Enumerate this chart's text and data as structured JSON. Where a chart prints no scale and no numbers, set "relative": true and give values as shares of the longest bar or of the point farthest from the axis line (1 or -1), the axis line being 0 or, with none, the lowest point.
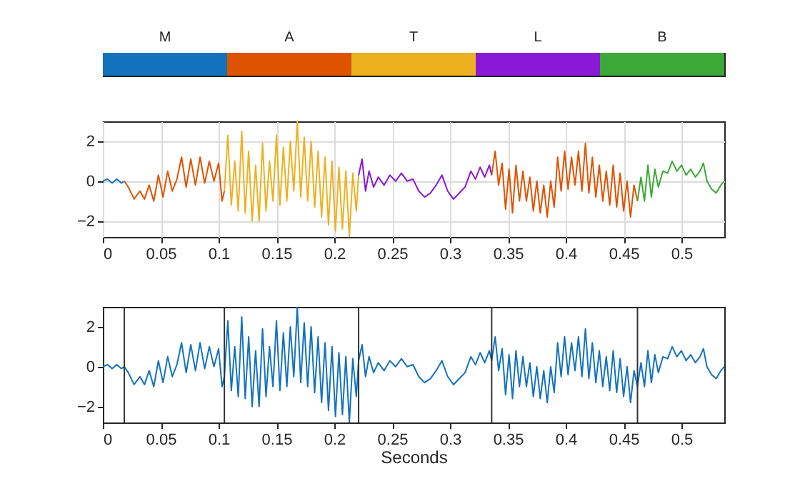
{
  "chart_data": [
    {
      "type": "bar",
      "orientation": "horizontal",
      "stacked": true,
      "relative": true,
      "categories": [
        null
      ],
      "series": [
        {
          "name": "M",
          "color": "#1372bd",
          "values": [
            0.2
          ]
        },
        {
          "name": "A",
          "color": "#de5300",
          "values": [
            0.2
          ]
        },
        {
          "name": "T",
          "color": "#edb120",
          "values": [
            0.2
          ]
        },
        {
          "name": "L",
          "color": "#8a18d6",
          "values": [
            0.2
          ]
        },
        {
          "name": "B",
          "color": "#3aa935",
          "values": [
            0.2
          ]
        }
      ]
    },
    {
      "type": "line",
      "xlim": [
        0,
        0.537
      ],
      "ylim": [
        -2.8,
        3
      ],
      "xticks": [
        0,
        0.05,
        0.1,
        0.15,
        0.2,
        0.25,
        0.3,
        0.35,
        0.4,
        0.45,
        0.5
      ],
      "yticks": [
        -2,
        0,
        2
      ],
      "grid": true,
      "series": [
        {
          "color": "#1372bd",
          "x": [
            0,
            0.004,
            0.008,
            0.012,
            0.016,
            0.0185
          ],
          "values": [
            0,
            0.1,
            -0.1,
            0.1,
            -0.1,
            0
          ]
        },
        {
          "color": "#de5300",
          "x": [
            0.0185,
            0.022,
            0.027,
            0.032,
            0.036,
            0.04,
            0.044,
            0.048,
            0.052,
            0.056,
            0.06,
            0.064,
            0.068,
            0.072,
            0.076,
            0.08,
            0.084,
            0.088,
            0.092,
            0.096,
            0.1,
            0.103,
            0.105
          ],
          "values": [
            0,
            -0.3,
            -0.9,
            -0.5,
            -0.9,
            -0.2,
            -1,
            0.3,
            -0.8,
            0.5,
            -0.5,
            0.1,
            1.2,
            -0.3,
            1.1,
            -0.2,
            1.2,
            -0.1,
            1,
            0,
            0.9,
            -1,
            -0.5
          ]
        },
        {
          "color": "#edb120",
          "x": [
            0.105,
            0.108,
            0.111,
            0.114,
            0.117,
            0.12,
            0.123,
            0.126,
            0.129,
            0.132,
            0.135,
            0.138,
            0.141,
            0.144,
            0.147,
            0.15,
            0.153,
            0.156,
            0.159,
            0.162,
            0.165,
            0.168,
            0.171,
            0.174,
            0.177,
            0.18,
            0.183,
            0.186,
            0.189,
            0.192,
            0.195,
            0.198,
            0.201,
            0.204,
            0.207,
            0.21,
            0.213,
            0.216,
            0.219,
            0.221
          ],
          "values": [
            -0.5,
            2.3,
            -1.2,
            1,
            -1.5,
            2.5,
            -1.6,
            1.5,
            -2,
            0.8,
            -2,
            1.9,
            -1.5,
            1,
            -1,
            2.3,
            -1.2,
            1.7,
            -1,
            2,
            -0.5,
            3,
            -0.8,
            2.2,
            -1,
            2,
            -1.3,
            1.5,
            -1.8,
            1.2,
            -2.2,
            1,
            -2.5,
            0.7,
            -2.4,
            0.5,
            -2.8,
            0.4,
            -1.5,
            0.3
          ]
        },
        {
          "color": "#8a18d6",
          "x": [
            0.221,
            0.224,
            0.227,
            0.23,
            0.234,
            0.238,
            0.243,
            0.248,
            0.253,
            0.258,
            0.263,
            0.268,
            0.273,
            0.278,
            0.283,
            0.288,
            0.293,
            0.298,
            0.303,
            0.308,
            0.313,
            0.318,
            0.322,
            0.326,
            0.33,
            0.334,
            0.336
          ],
          "values": [
            0.3,
            1.1,
            -0.5,
            0.5,
            -0.3,
            0.2,
            -0.2,
            0.3,
            0,
            0.4,
            0,
            0.1,
            -0.5,
            -0.8,
            -0.6,
            -0.2,
            0.3,
            -0.5,
            -0.9,
            -0.6,
            -0.3,
            0.5,
            0.1,
            0.7,
            0.2,
            0.8,
            0.3
          ]
        },
        {
          "color": "#de5300",
          "x": [
            0.336,
            0.339,
            0.342,
            0.345,
            0.348,
            0.351,
            0.354,
            0.357,
            0.36,
            0.363,
            0.366,
            0.369,
            0.372,
            0.375,
            0.378,
            0.381,
            0.384,
            0.387,
            0.39,
            0.393,
            0.396,
            0.399,
            0.402,
            0.405,
            0.408,
            0.411,
            0.414,
            0.417,
            0.42,
            0.423,
            0.426,
            0.429,
            0.432,
            0.435,
            0.438,
            0.441,
            0.444,
            0.447,
            0.45,
            0.453,
            0.456,
            0.459,
            0.462
          ],
          "values": [
            0.3,
            1.5,
            -0.2,
            0.9,
            -1.4,
            0.6,
            -1.6,
            0.8,
            -1,
            0.5,
            -1,
            0.2,
            -1.5,
            0,
            -1.6,
            -0.2,
            -1.8,
            0,
            -1.3,
            1.2,
            -0.5,
            1.5,
            -0.4,
            1.2,
            -0.2,
            1.5,
            -0.5,
            1.9,
            -0.6,
            1.2,
            -0.8,
            0.8,
            -1,
            0.5,
            -1.2,
            0.8,
            -1.3,
            0.4,
            -1.5,
            0,
            -1.8,
            -0.2,
            -1
          ]
        },
        {
          "color": "#3aa935",
          "x": [
            0.462,
            0.465,
            0.468,
            0.471,
            0.474,
            0.477,
            0.48,
            0.484,
            0.488,
            0.492,
            0.496,
            0.5,
            0.504,
            0.508,
            0.512,
            0.516,
            0.519,
            0.522,
            0.526,
            0.53,
            0.534,
            0.537
          ],
          "values": [
            -1,
            0.2,
            -1,
            0.8,
            -0.8,
            0.6,
            -0.3,
            0.5,
            0.4,
            1,
            0.5,
            0.8,
            0.3,
            0.6,
            0.2,
            0.5,
            0.9,
            0,
            -0.4,
            -0.6,
            -0.2,
            0
          ]
        }
      ]
    },
    {
      "type": "line",
      "xlabel": "Seconds",
      "xlim": [
        0,
        0.537
      ],
      "ylim": [
        -2.8,
        3
      ],
      "xticks": [
        0,
        0.05,
        0.1,
        0.15,
        0.2,
        0.25,
        0.3,
        0.35,
        0.4,
        0.45,
        0.5
      ],
      "yticks": [
        -2,
        0,
        2
      ],
      "ref_lines": [
        {
          "axis": "x",
          "value": 0.0185
        },
        {
          "axis": "x",
          "value": 0.105
        },
        {
          "axis": "x",
          "value": 0.221
        },
        {
          "axis": "x",
          "value": 0.336
        },
        {
          "axis": "x",
          "value": 0.462
        }
      ],
      "series": [
        {
          "color": "#1372bd",
          "x": [
            0,
            0.004,
            0.008,
            0.012,
            0.016,
            0.0185,
            0.022,
            0.027,
            0.032,
            0.036,
            0.04,
            0.044,
            0.048,
            0.052,
            0.056,
            0.06,
            0.064,
            0.068,
            0.072,
            0.076,
            0.08,
            0.084,
            0.088,
            0.092,
            0.096,
            0.1,
            0.103,
            0.105,
            0.108,
            0.111,
            0.114,
            0.117,
            0.12,
            0.123,
            0.126,
            0.129,
            0.132,
            0.135,
            0.138,
            0.141,
            0.144,
            0.147,
            0.15,
            0.153,
            0.156,
            0.159,
            0.162,
            0.165,
            0.168,
            0.171,
            0.174,
            0.177,
            0.18,
            0.183,
            0.186,
            0.189,
            0.192,
            0.195,
            0.198,
            0.201,
            0.204,
            0.207,
            0.21,
            0.213,
            0.216,
            0.219,
            0.221,
            0.224,
            0.227,
            0.23,
            0.234,
            0.238,
            0.243,
            0.248,
            0.253,
            0.258,
            0.263,
            0.268,
            0.273,
            0.278,
            0.283,
            0.288,
            0.293,
            0.298,
            0.303,
            0.308,
            0.313,
            0.318,
            0.322,
            0.326,
            0.33,
            0.334,
            0.336,
            0.339,
            0.342,
            0.345,
            0.348,
            0.351,
            0.354,
            0.357,
            0.36,
            0.363,
            0.366,
            0.369,
            0.372,
            0.375,
            0.378,
            0.381,
            0.384,
            0.387,
            0.39,
            0.393,
            0.396,
            0.399,
            0.402,
            0.405,
            0.408,
            0.411,
            0.414,
            0.417,
            0.42,
            0.423,
            0.426,
            0.429,
            0.432,
            0.435,
            0.438,
            0.441,
            0.444,
            0.447,
            0.45,
            0.453,
            0.456,
            0.459,
            0.462,
            0.465,
            0.468,
            0.471,
            0.474,
            0.477,
            0.48,
            0.484,
            0.488,
            0.492,
            0.496,
            0.5,
            0.504,
            0.508,
            0.512,
            0.516,
            0.519,
            0.522,
            0.526,
            0.53,
            0.534,
            0.537
          ],
          "values": [
            0,
            0.1,
            -0.1,
            0.1,
            -0.1,
            0,
            -0.3,
            -0.9,
            -0.5,
            -0.9,
            -0.2,
            -1,
            0.3,
            -0.8,
            0.5,
            -0.5,
            0.1,
            1.2,
            -0.3,
            1.1,
            -0.2,
            1.2,
            -0.1,
            1,
            0,
            0.9,
            -1,
            -0.5,
            2.3,
            -1.2,
            1,
            -1.5,
            2.5,
            -1.6,
            1.5,
            -2,
            0.8,
            -2,
            1.9,
            -1.5,
            1,
            -1,
            2.3,
            -1.2,
            1.7,
            -1,
            2,
            -0.5,
            3,
            -0.8,
            2.2,
            -1,
            2,
            -1.3,
            1.5,
            -1.8,
            1.2,
            -2.2,
            1,
            -2.5,
            0.7,
            -2.4,
            0.5,
            -2.8,
            0.4,
            -1.5,
            0.3,
            1.1,
            -0.5,
            0.5,
            -0.3,
            0.2,
            -0.2,
            0.3,
            0,
            0.4,
            0,
            0.1,
            -0.5,
            -0.8,
            -0.6,
            -0.2,
            0.3,
            -0.5,
            -0.9,
            -0.6,
            -0.3,
            0.5,
            0.1,
            0.7,
            0.2,
            0.8,
            0.3,
            1.5,
            -0.2,
            0.9,
            -1.4,
            0.6,
            -1.6,
            0.8,
            -1,
            0.5,
            -1,
            0.2,
            -1.5,
            0,
            -1.6,
            -0.2,
            -1.8,
            0,
            -1.3,
            1.2,
            -0.5,
            1.5,
            -0.4,
            1.2,
            -0.2,
            1.5,
            -0.5,
            1.9,
            -0.6,
            1.2,
            -0.8,
            0.8,
            -1,
            0.5,
            -1.2,
            0.8,
            -1.3,
            0.4,
            -1.5,
            0,
            -1.8,
            -0.2,
            -1,
            0.2,
            -1,
            0.8,
            -0.8,
            0.6,
            -0.3,
            0.5,
            0.4,
            1,
            0.5,
            0.8,
            0.3,
            0.6,
            0.2,
            0.5,
            0.9,
            0,
            -0.4,
            -0.6,
            -0.2,
            0
          ]
        }
      ]
    }
  ]
}
